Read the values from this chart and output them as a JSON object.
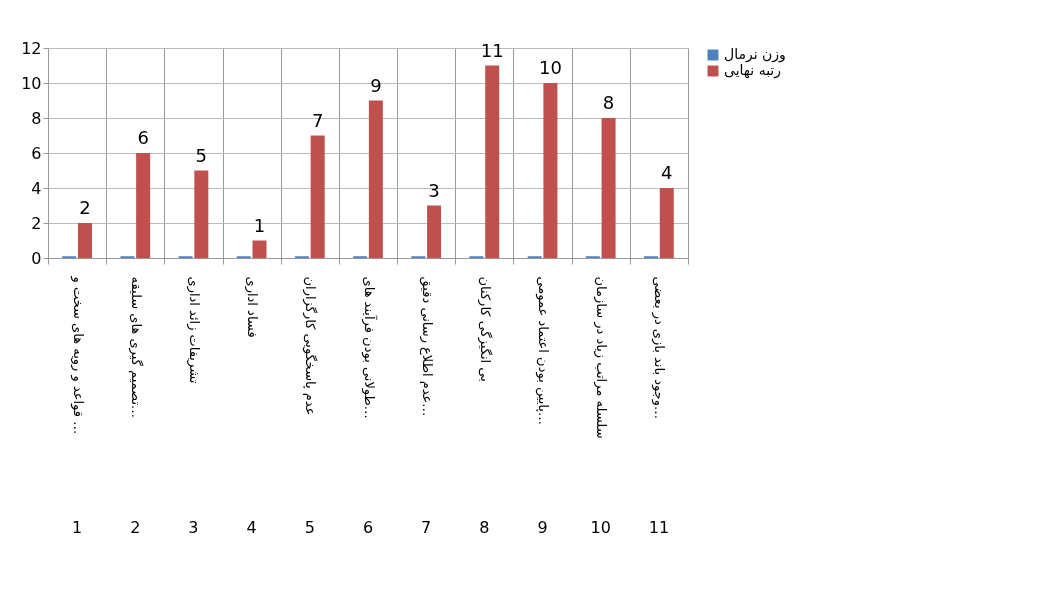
{
  "chart_data": {
    "type": "bar",
    "categories": [
      "قواعد و رویه های سخت و …",
      "تصمیم گیری  های سلیقه…",
      "تشریفات زائد اداری",
      "فساد اداری",
      "عدم پاسخگویی کارگزاران",
      "طولانی بودن فرآیند های…",
      "عدم اطلاع رسانی دقیق…",
      "بی انگیزگی کارکنان",
      "پایین بودن اعتماد عمومی…",
      "سلسله مراتب زیاد در سازمان",
      "وجود باند بازی در بعضی…"
    ],
    "series": [
      {
        "name": "وزن نرمال",
        "color": "#4f81bd",
        "values": [
          0.1,
          0.1,
          0.1,
          0.1,
          0.1,
          0.1,
          0.1,
          0.1,
          0.1,
          0.1,
          0.1
        ]
      },
      {
        "name": "رتبه نهایی",
        "color": "#c0504d",
        "values": [
          2,
          6,
          5,
          1,
          7,
          9,
          3,
          11,
          10,
          8,
          4
        ],
        "value_labels": [
          "2",
          "6",
          "5",
          "1",
          "7",
          "9",
          "3",
          "11",
          "10",
          "8",
          "4"
        ]
      }
    ],
    "ylim": [
      0,
      12
    ],
    "yticks": [
      0,
      2,
      4,
      6,
      8,
      10,
      12
    ],
    "grid": "y",
    "legend": "right",
    "annotations": [
      "1",
      "2",
      "3",
      "4",
      "5",
      "6",
      "7",
      "8",
      "9",
      "10",
      "11"
    ]
  }
}
